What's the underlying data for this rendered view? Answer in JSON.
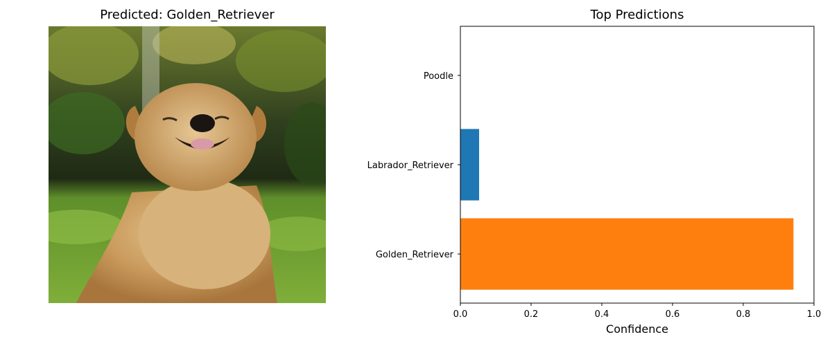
{
  "left_panel": {
    "title": "Predicted: Golden_Retriever"
  },
  "colors": {
    "bar_primary": "#ff7f0e",
    "bar_secondary": "#1f77b4",
    "axes": "#000000"
  },
  "chart_data": {
    "type": "bar",
    "orientation": "horizontal",
    "title": "Top Predictions",
    "xlabel": "Confidence",
    "ylabel": "",
    "xlim": [
      0,
      1.0
    ],
    "xticks": [
      "0.0",
      "0.2",
      "0.4",
      "0.6",
      "0.8",
      "1.0"
    ],
    "categories": [
      "Golden_Retriever",
      "Labrador_Retriever",
      "Poodle"
    ],
    "values": [
      0.942,
      0.053,
      0.0
    ],
    "bar_colors": [
      "#ff7f0e",
      "#1f77b4",
      "#1f77b4"
    ],
    "grid": false,
    "legend": "none"
  }
}
